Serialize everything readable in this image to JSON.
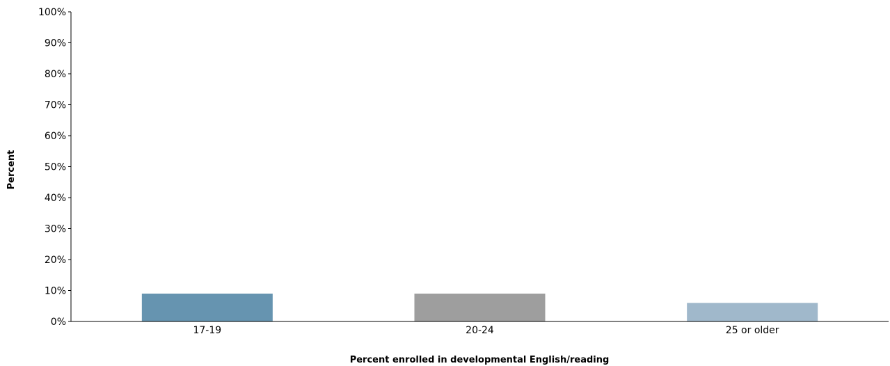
{
  "chart_data": {
    "type": "bar",
    "categories": [
      "17-19",
      "20-24",
      "25 or older"
    ],
    "values": [
      9,
      9,
      6
    ],
    "bar_colors": [
      "#6694b0",
      "#9e9e9e",
      "#a0b8cb"
    ],
    "ylim": [
      0,
      100
    ],
    "yticks": [
      0,
      10,
      20,
      30,
      40,
      50,
      60,
      70,
      80,
      90,
      100
    ],
    "ytick_labels": [
      "0%",
      "10%",
      "20%",
      "30%",
      "40%",
      "50%",
      "60%",
      "70%",
      "80%",
      "90%",
      "100%"
    ],
    "xlabel": "Percent enrolled in developmental English/reading",
    "ylabel": "Percent",
    "title": "",
    "grid": false,
    "legend": "none"
  }
}
